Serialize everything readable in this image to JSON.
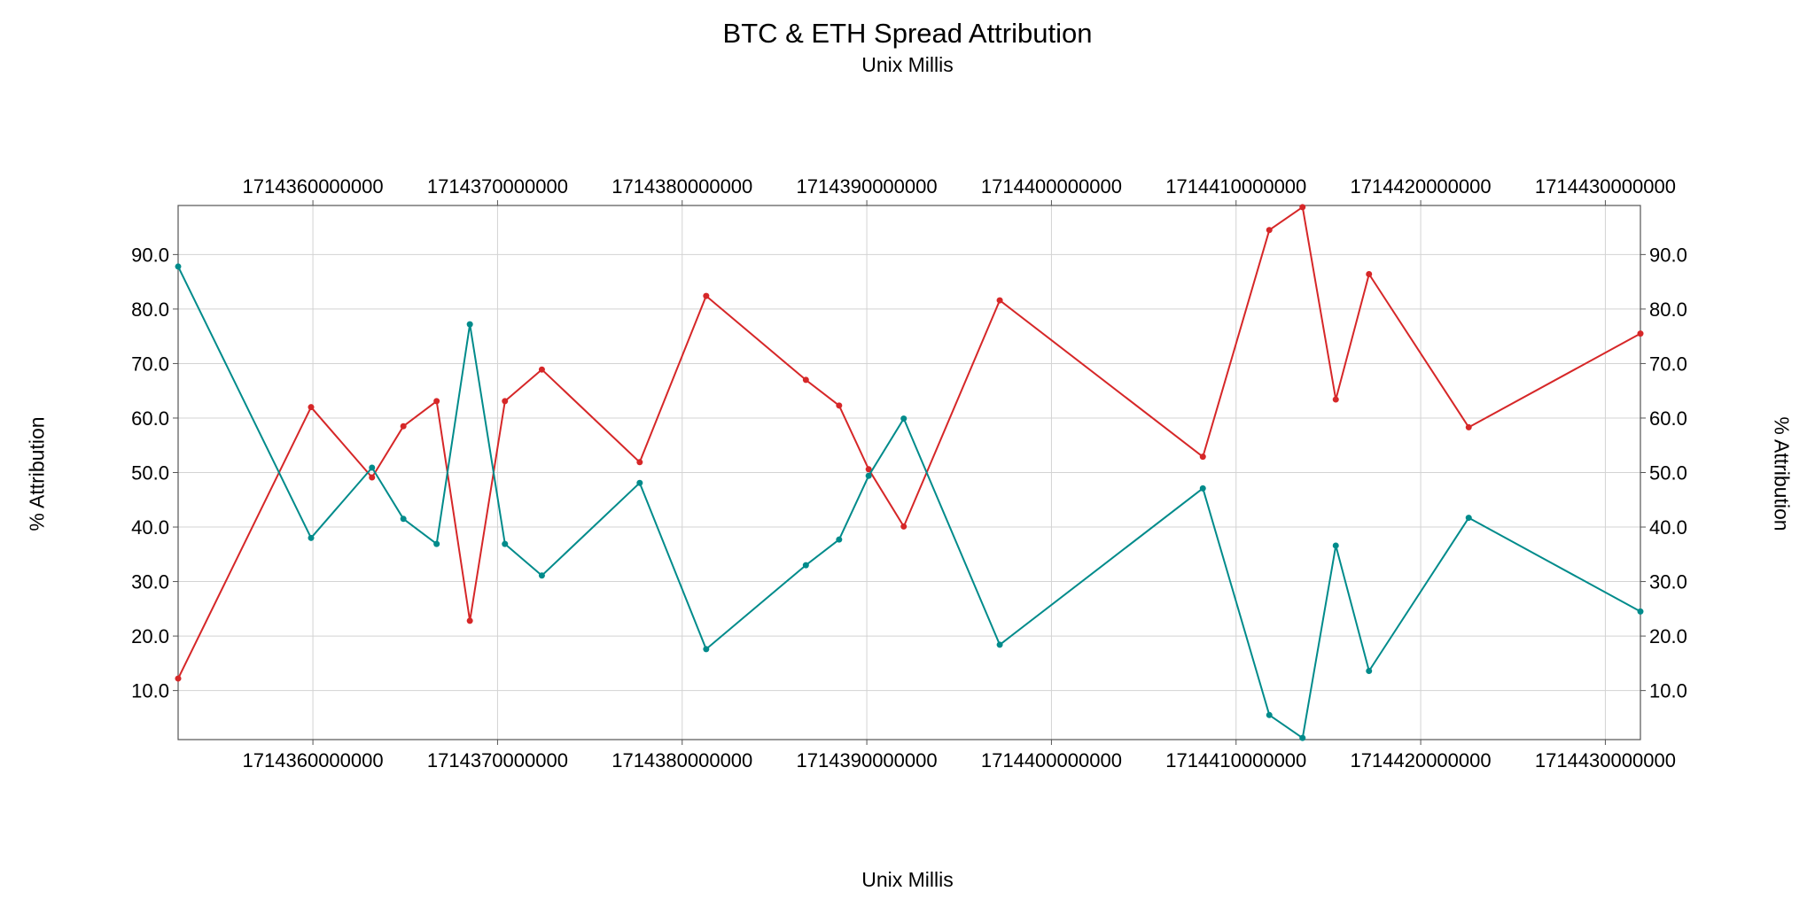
{
  "chart_data": {
    "type": "line",
    "title": "BTC & ETH Spread Attribution",
    "subtitle": "Unix Millis",
    "xlabel": "Unix Millis",
    "ylabel": "% Attribution",
    "xlim": [
      1714352700000,
      1714431900000
    ],
    "ylim": [
      1,
      99
    ],
    "x_ticks": [
      1714360000000,
      1714370000000,
      1714380000000,
      1714390000000,
      1714400000000,
      1714410000000,
      1714420000000,
      1714430000000
    ],
    "x_tick_labels": [
      "1714360000000",
      "1714370000000",
      "1714380000000",
      "1714390000000",
      "1714400000000",
      "1714410000000",
      "1714420000000",
      "1714430000000"
    ],
    "y_ticks": [
      10,
      20,
      30,
      40,
      50,
      60,
      70,
      80,
      90
    ],
    "y_tick_labels": [
      "10.0",
      "20.0",
      "30.0",
      "40.0",
      "50.0",
      "60.0",
      "70.0",
      "80.0",
      "90.0"
    ],
    "grid": true,
    "series": [
      {
        "color": "#d62728",
        "x": [
          1714352700000,
          1714359900000,
          1714363200000,
          1714364900000,
          1714366700000,
          1714368500000,
          1714370400000,
          1714372400000,
          1714377700000,
          1714381300000,
          1714386700000,
          1714388500000,
          1714390100000,
          1714392000000,
          1714397200000,
          1714408200000,
          1714411800000,
          1714413600000,
          1714415400000,
          1714417200000,
          1714422600000,
          1714431900000
        ],
        "values": [
          12.2,
          62.0,
          49.1,
          58.5,
          63.1,
          22.8,
          63.1,
          68.9,
          51.9,
          82.4,
          67.0,
          62.3,
          50.6,
          40.1,
          81.6,
          52.9,
          94.5,
          98.7,
          63.4,
          86.4,
          58.3,
          75.5
        ]
      },
      {
        "color": "#008b8b",
        "x": [
          1714352700000,
          1714359900000,
          1714363200000,
          1714364900000,
          1714366700000,
          1714368500000,
          1714370400000,
          1714372400000,
          1714377700000,
          1714381300000,
          1714386700000,
          1714388500000,
          1714390100000,
          1714392000000,
          1714397200000,
          1714408200000,
          1714411800000,
          1714413600000,
          1714415400000,
          1714417200000,
          1714422600000,
          1714431900000
        ],
        "values": [
          87.8,
          38.0,
          50.9,
          41.5,
          36.9,
          77.2,
          36.9,
          31.1,
          48.1,
          17.6,
          33.0,
          37.7,
          49.4,
          59.9,
          18.4,
          47.1,
          5.5,
          1.3,
          36.6,
          13.6,
          41.7,
          24.5
        ]
      }
    ]
  }
}
